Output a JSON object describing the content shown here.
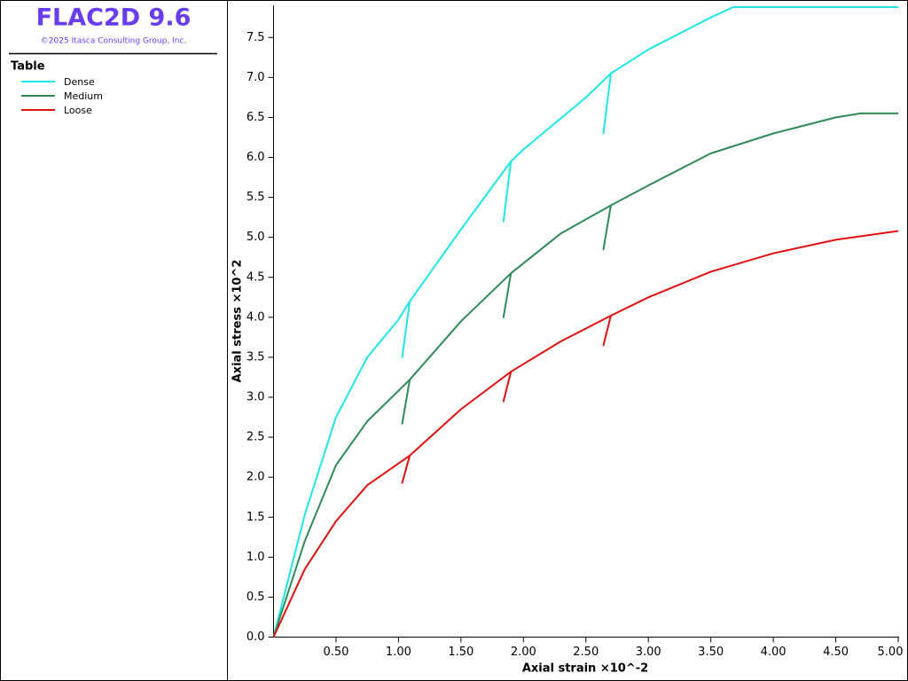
{
  "chart_data": {
    "type": "line",
    "title": "FLAC2D 9.6",
    "subtitle": "©2025 Itasca Consulting Group, Inc.",
    "legend_title": "Table",
    "x_label": "Axial strain ×10^-2",
    "y_label": "Axial stress ×10^2",
    "xlim": [
      0,
      5
    ],
    "ylim": [
      0,
      7.88
    ],
    "xticks": [
      {
        "value": 0.5,
        "label": "0.50"
      },
      {
        "value": 1,
        "label": "1.00"
      },
      {
        "value": 1.5,
        "label": "1.50"
      },
      {
        "value": 2,
        "label": "2.00"
      },
      {
        "value": 2.5,
        "label": "2.50"
      },
      {
        "value": 3,
        "label": "3.00"
      },
      {
        "value": 3.5,
        "label": "3.50"
      },
      {
        "value": 4,
        "label": "4.00"
      },
      {
        "value": 4.5,
        "label": "4.50"
      },
      {
        "value": 5,
        "label": "5.00"
      }
    ],
    "yticks": [
      {
        "value": 0,
        "label": "0.0"
      },
      0.5,
      {
        "value": 1,
        "label": "1.0"
      },
      1.5,
      {
        "value": 2,
        "label": "2.0"
      },
      2.5,
      {
        "value": 3,
        "label": "3.0"
      },
      3.5,
      {
        "value": 4,
        "label": "4.0"
      },
      4.5,
      {
        "value": 5,
        "label": "5.0"
      },
      5.5,
      {
        "value": 6,
        "label": "6.0"
      },
      6.5,
      {
        "value": 7,
        "label": "7.0"
      },
      7.5
    ],
    "series": [
      {
        "name": "Dense",
        "color": "#1ee6e6",
        "x": [
          0,
          0.25,
          0.5,
          0.75,
          1.0,
          1.09,
          1.03,
          1.09,
          1.5,
          1.9,
          1.84,
          1.9,
          2.0,
          2.5,
          2.7,
          2.64,
          2.7,
          3.0,
          3.5,
          3.68,
          5.0
        ],
        "values": [
          0,
          1.53,
          2.75,
          3.5,
          3.97,
          4.2,
          3.5,
          4.2,
          5.1,
          5.95,
          5.2,
          5.95,
          6.1,
          6.75,
          7.05,
          6.3,
          7.05,
          7.35,
          7.75,
          7.88,
          7.88
        ]
      },
      {
        "name": "Medium",
        "color": "#2e8b57",
        "x": [
          0,
          0.25,
          0.5,
          0.75,
          1.09,
          1.03,
          1.09,
          1.5,
          1.9,
          1.84,
          1.9,
          2.3,
          2.7,
          2.64,
          2.7,
          3.0,
          3.5,
          4.0,
          4.5,
          4.7,
          5.0
        ],
        "values": [
          0,
          1.2,
          2.15,
          2.7,
          3.22,
          2.67,
          3.22,
          3.95,
          4.55,
          4.0,
          4.55,
          5.05,
          5.4,
          4.85,
          5.4,
          5.65,
          6.05,
          6.3,
          6.5,
          6.55,
          6.55
        ]
      },
      {
        "name": "Loose",
        "color": "#e01010",
        "x": [
          0,
          0.25,
          0.5,
          0.75,
          1.09,
          1.03,
          1.09,
          1.5,
          1.9,
          1.84,
          1.9,
          2.3,
          2.7,
          2.64,
          2.7,
          3.0,
          3.5,
          4.0,
          4.5,
          5.0
        ],
        "values": [
          0,
          0.85,
          1.45,
          1.9,
          2.27,
          1.93,
          2.27,
          2.85,
          3.32,
          2.95,
          3.32,
          3.7,
          4.02,
          3.65,
          4.02,
          4.25,
          4.57,
          4.8,
          4.97,
          5.08
        ]
      }
    ]
  }
}
